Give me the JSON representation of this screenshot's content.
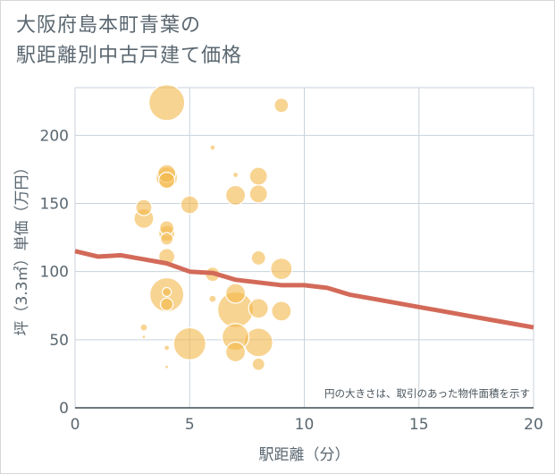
{
  "title_lines": [
    "大阪府島本町青葉の",
    "駅距離別中古戸建て価格"
  ],
  "chart_data": {
    "type": "scatter",
    "xlabel": "駅距離（分）",
    "ylabel": "坪（3.3㎡）単価（万円）",
    "xlim": [
      0,
      20
    ],
    "ylim": [
      0,
      235
    ],
    "xticks": [
      0,
      5,
      10,
      15,
      20
    ],
    "yticks": [
      0,
      50,
      100,
      150,
      200
    ],
    "grid": true,
    "annotation": "円の大きさは、取引のあった物件面積を示す",
    "bubble_color": "#f3b84a",
    "line_color": "#d36a59",
    "points": [
      {
        "x": 4,
        "y": 224,
        "size": 20
      },
      {
        "x": 9,
        "y": 222,
        "size": 8
      },
      {
        "x": 6,
        "y": 191,
        "size": 3
      },
      {
        "x": 4,
        "y": 172,
        "size": 10
      },
      {
        "x": 4,
        "y": 169,
        "size": 12
      },
      {
        "x": 4,
        "y": 167,
        "size": 9
      },
      {
        "x": 7,
        "y": 171,
        "size": 3
      },
      {
        "x": 8,
        "y": 170,
        "size": 10
      },
      {
        "x": 8,
        "y": 157,
        "size": 10
      },
      {
        "x": 7,
        "y": 156,
        "size": 11
      },
      {
        "x": 5,
        "y": 149,
        "size": 10
      },
      {
        "x": 3,
        "y": 147,
        "size": 9
      },
      {
        "x": 3,
        "y": 139,
        "size": 11
      },
      {
        "x": 4,
        "y": 132,
        "size": 8
      },
      {
        "x": 4,
        "y": 128,
        "size": 9
      },
      {
        "x": 4,
        "y": 124,
        "size": 7
      },
      {
        "x": 4,
        "y": 111,
        "size": 9
      },
      {
        "x": 8,
        "y": 110,
        "size": 8
      },
      {
        "x": 9,
        "y": 102,
        "size": 12
      },
      {
        "x": 6,
        "y": 98,
        "size": 8
      },
      {
        "x": 4,
        "y": 83,
        "size": 19
      },
      {
        "x": 4,
        "y": 85,
        "size": 5
      },
      {
        "x": 7,
        "y": 84,
        "size": 11
      },
      {
        "x": 6,
        "y": 80,
        "size": 4
      },
      {
        "x": 4,
        "y": 76,
        "size": 7
      },
      {
        "x": 7,
        "y": 72,
        "size": 20
      },
      {
        "x": 8,
        "y": 73,
        "size": 11
      },
      {
        "x": 9,
        "y": 71,
        "size": 11
      },
      {
        "x": 3,
        "y": 59,
        "size": 4
      },
      {
        "x": 3,
        "y": 52,
        "size": 2
      },
      {
        "x": 7,
        "y": 52,
        "size": 15
      },
      {
        "x": 5,
        "y": 47,
        "size": 18
      },
      {
        "x": 8,
        "y": 48,
        "size": 16
      },
      {
        "x": 4,
        "y": 44,
        "size": 3
      },
      {
        "x": 7,
        "y": 41,
        "size": 11
      },
      {
        "x": 8,
        "y": 32,
        "size": 7
      },
      {
        "x": 4,
        "y": 30,
        "size": 2
      }
    ],
    "trend": {
      "x": [
        0,
        1,
        2,
        3,
        4,
        5,
        6,
        7,
        8,
        9,
        10,
        11,
        12,
        13,
        14,
        15,
        16,
        17,
        18,
        19,
        20
      ],
      "y": [
        115,
        111,
        112,
        109,
        106,
        100,
        99,
        94,
        92,
        90,
        90,
        88,
        83,
        80,
        77,
        74,
        71,
        68,
        65,
        62,
        59
      ]
    }
  }
}
